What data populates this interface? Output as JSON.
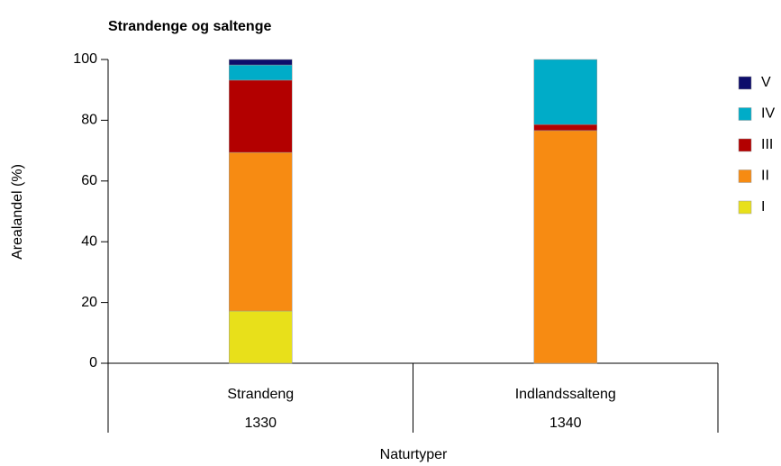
{
  "chart_data": {
    "type": "stacked_bar",
    "title": "Strandenge og saltenge",
    "xlabel": "Naturtyper",
    "ylabel": "Arealandel (%)",
    "categories": [
      "Strandeng",
      "Indlandssalteng"
    ],
    "category_codes": [
      "1330",
      "1340"
    ],
    "series": [
      {
        "name": "I",
        "color": "#e8e01a",
        "values": [
          17.2,
          0
        ]
      },
      {
        "name": "II",
        "color": "#f78b12",
        "values": [
          52.2,
          76.6
        ]
      },
      {
        "name": "III",
        "color": "#b30000",
        "values": [
          23.8,
          2.0
        ]
      },
      {
        "name": "IV",
        "color": "#00acc8",
        "values": [
          5.0,
          21.4
        ]
      },
      {
        "name": "V",
        "color": "#0d0d6b",
        "values": [
          1.8,
          0
        ]
      }
    ],
    "ylim": [
      0,
      100
    ],
    "yticks": [
      0,
      20,
      40,
      60,
      80,
      100
    ],
    "legend": "right"
  }
}
